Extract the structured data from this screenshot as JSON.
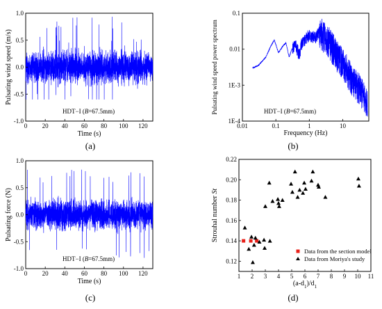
{
  "chart_data": [
    {
      "type": "line",
      "panel_label": "(a)",
      "series_label": "HDT−I",
      "annotation_B": "B",
      "annotation_val": "=67.5mm)",
      "xlabel": "Time (s)",
      "ylabel": "Pulsating wind speed (m/s)",
      "xlim": [
        0,
        130
      ],
      "ylim": [
        -1.0,
        1.0
      ],
      "x_ticks": [
        "0",
        "20",
        "40",
        "60",
        "80",
        "100",
        "120"
      ],
      "y_ticks": [
        "-1.0",
        "-0.5",
        "0.0",
        "0.5",
        "1.0"
      ],
      "color": "#0000ff",
      "signal": {
        "mean": 0.0,
        "typical_range": [
          -0.45,
          0.45
        ],
        "peak_max": 0.95,
        "peak_min": -0.6
      }
    },
    {
      "type": "line",
      "panel_label": "(b)",
      "series_label": "HDT−I",
      "annotation_B": "B",
      "annotation_val": "=67.5mm)",
      "xlabel": "Frequency (Hz)",
      "ylabel": "Pulsating wind speed power spectrum",
      "xscale": "log",
      "yscale": "log",
      "xlim": [
        0.01,
        60
      ],
      "ylim": [
        0.0001,
        0.1
      ],
      "x_ticks": [
        "0.01",
        "0.1",
        "1",
        "10"
      ],
      "y_ticks": [
        "1E-4",
        "1E-3",
        "0.01",
        "0.1"
      ],
      "color": "#0000ff",
      "x": [
        0.02,
        0.03,
        0.05,
        0.07,
        0.09,
        0.12,
        0.16,
        0.2,
        0.25,
        0.3,
        0.4,
        0.5,
        0.6,
        0.8,
        1.0,
        1.5,
        2.0,
        3.0,
        4.0,
        5.0,
        7.0,
        10.0,
        15.0,
        20.0,
        30.0,
        40.0,
        55.0
      ],
      "y": [
        0.003,
        0.0035,
        0.006,
        0.012,
        0.018,
        0.008,
        0.012,
        0.015,
        0.006,
        0.01,
        0.012,
        0.007,
        0.015,
        0.02,
        0.025,
        0.02,
        0.03,
        0.02,
        0.015,
        0.01,
        0.006,
        0.004,
        0.002,
        0.0012,
        0.0008,
        0.0005,
        0.0003
      ]
    },
    {
      "type": "line",
      "panel_label": "(c)",
      "series_label": "HDT−I",
      "annotation_B": "B",
      "annotation_val": "=67.5mm)",
      "xlabel": "Time (s)",
      "ylabel": "Pulsating force (N)",
      "xlim": [
        0,
        130
      ],
      "ylim": [
        -1.0,
        1.0
      ],
      "x_ticks": [
        "0",
        "20",
        "40",
        "60",
        "80",
        "100",
        "120"
      ],
      "y_ticks": [
        "-1.0",
        "-0.5",
        "0.0",
        "0.5",
        "1.0"
      ],
      "color": "#0000ff",
      "signal": {
        "mean": 0.0,
        "typical_range": [
          -0.4,
          0.4
        ],
        "peak_max": 0.85,
        "peak_min": -0.8
      }
    },
    {
      "type": "scatter",
      "panel_label": "(d)",
      "xlabel": "(a-d",
      "xlabel_sub1": "1",
      "xlabel_mid": ")/d",
      "xlabel_sub2": "1",
      "ylabel": "Strouhal number",
      "ylabel_var": "St",
      "xlim": [
        1,
        11
      ],
      "ylim": [
        0.11,
        0.22
      ],
      "x_ticks": [
        "1",
        "2",
        "3",
        "4",
        "5",
        "6",
        "7",
        "8",
        "9",
        "10",
        "11"
      ],
      "y_ticks": [
        "0.12",
        "0.14",
        "0.16",
        "0.18",
        "0.20",
        "0.22"
      ],
      "series": [
        {
          "name": "Data from the section model",
          "marker": "square",
          "color": "#e8211a",
          "x": [
            1.35,
            1.9,
            2.35
          ],
          "y": [
            0.14,
            0.14,
            0.14
          ]
        },
        {
          "name": "Data from Moriya's study",
          "marker": "triangle",
          "color": "#000000",
          "x": [
            1.45,
            1.75,
            1.95,
            2.05,
            2.15,
            2.25,
            2.55,
            2.9,
            3.0,
            2.95,
            3.3,
            3.35,
            3.55,
            3.95,
            4.0,
            4.05,
            4.3,
            4.95,
            5.05,
            5.25,
            5.45,
            5.6,
            5.85,
            5.95,
            6.05,
            6.5,
            6.6,
            7.0,
            7.05,
            7.55,
            10.05,
            10.1
          ],
          "y": [
            0.153,
            0.132,
            0.144,
            0.119,
            0.136,
            0.143,
            0.139,
            0.141,
            0.174,
            0.133,
            0.197,
            0.14,
            0.179,
            0.181,
            0.177,
            0.174,
            0.18,
            0.196,
            0.188,
            0.208,
            0.183,
            0.19,
            0.187,
            0.197,
            0.191,
            0.199,
            0.208,
            0.195,
            0.193,
            0.183,
            0.201,
            0.194
          ]
        }
      ]
    }
  ]
}
